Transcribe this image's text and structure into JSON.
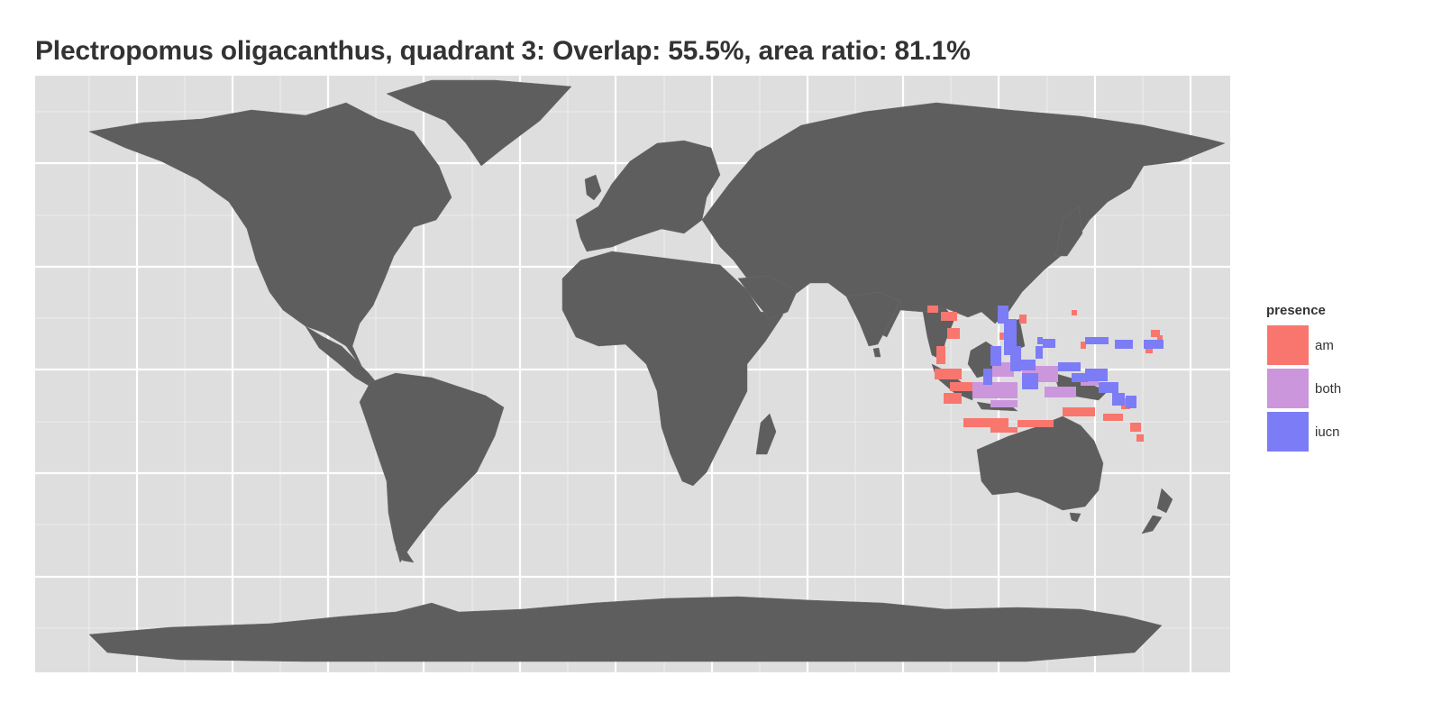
{
  "title": "Plectropomus oligacanthus, quadrant 3: Overlap: 55.5%, area ratio: 81.1%",
  "legend": {
    "title": "presence",
    "items": [
      {
        "label": "am",
        "color": "#F8766D"
      },
      {
        "label": "both",
        "color": "#CC96DD"
      },
      {
        "label": "iucn",
        "color": "#7C7CF7"
      }
    ]
  },
  "colors": {
    "panel_background": "#DEDEDE",
    "land": "#5E5E5E",
    "grid": "#FFFFFF"
  }
}
